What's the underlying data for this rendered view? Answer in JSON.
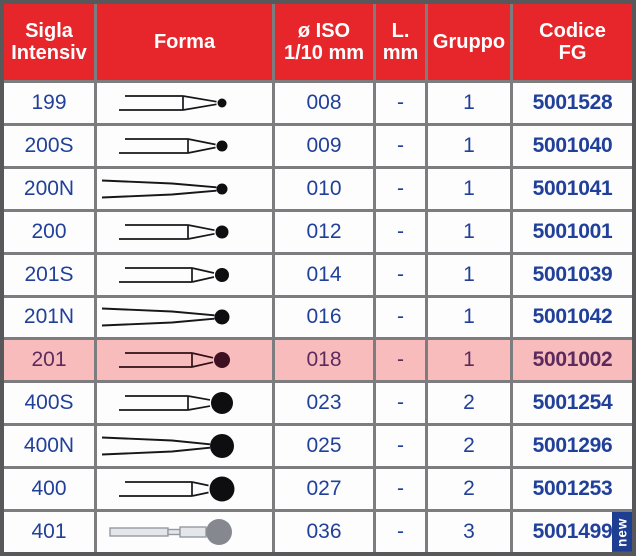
{
  "colors": {
    "header_bg": "#e7262b",
    "header_text": "#ffffff",
    "grid_line": "#7d7d7f",
    "outer_border": "#58585a",
    "text_blue": "#21409a",
    "row_bg": "#fdfdfd",
    "highlight_bg": "#f9bcbd",
    "highlight_text": "#5c2b5e",
    "badge_bg": "#1e3e92",
    "badge_text": "#ffffff",
    "shape_ink": "#17171a",
    "shape_ball": "#0e0e10",
    "highlight_shape_ink": "#2e1016",
    "highlight_shape_ball": "#3d1120",
    "gray_shape_fill": "#e4e6ea",
    "gray_shape_stroke": "#959aa2",
    "gray_shape_ball": "#85898f"
  },
  "table": {
    "columns": [
      {
        "id": "sigla",
        "lines": [
          "Sigla",
          "Intensiv"
        ]
      },
      {
        "id": "forma",
        "lines": [
          "Forma"
        ]
      },
      {
        "id": "iso",
        "lines": [
          "ø ISO",
          "1/10 mm"
        ]
      },
      {
        "id": "l",
        "lines": [
          "L.",
          "mm"
        ]
      },
      {
        "id": "gruppo",
        "lines": [
          "Gruppo"
        ]
      },
      {
        "id": "codice",
        "lines": [
          "Codice",
          "FG"
        ]
      }
    ],
    "rows": [
      {
        "sigla": "199",
        "iso": "008",
        "l": "-",
        "gruppo": "1",
        "codice": "5001528",
        "highlight": false,
        "shape": {
          "type": "cone",
          "v": 83,
          "r": 4.5
        }
      },
      {
        "sigla": "200S",
        "iso": "009",
        "l": "-",
        "gruppo": "1",
        "codice": "5001040",
        "highlight": false,
        "shape": {
          "type": "cone",
          "v": 88,
          "r": 5.5
        }
      },
      {
        "sigla": "200N",
        "iso": "010",
        "l": "-",
        "gruppo": "1",
        "codice": "5001041",
        "highlight": false,
        "shape": {
          "type": "taper",
          "r": 5.5
        }
      },
      {
        "sigla": "200",
        "iso": "012",
        "l": "-",
        "gruppo": "1",
        "codice": "5001001",
        "highlight": false,
        "shape": {
          "type": "cone",
          "v": 88,
          "r": 6.5
        }
      },
      {
        "sigla": "201S",
        "iso": "014",
        "l": "-",
        "gruppo": "1",
        "codice": "5001039",
        "highlight": false,
        "shape": {
          "type": "cone",
          "v": 92,
          "r": 7
        }
      },
      {
        "sigla": "201N",
        "iso": "016",
        "l": "-",
        "gruppo": "1",
        "codice": "5001042",
        "highlight": false,
        "shape": {
          "type": "taper",
          "r": 7.5
        }
      },
      {
        "sigla": "201",
        "iso": "018",
        "l": "-",
        "gruppo": "1",
        "codice": "5001002",
        "highlight": true,
        "shape": {
          "type": "cone",
          "v": 92,
          "r": 8
        }
      },
      {
        "sigla": "400S",
        "iso": "023",
        "l": "-",
        "gruppo": "2",
        "codice": "5001254",
        "highlight": false,
        "shape": {
          "type": "cone",
          "v": 88,
          "r": 11
        }
      },
      {
        "sigla": "400N",
        "iso": "025",
        "l": "-",
        "gruppo": "2",
        "codice": "5001296",
        "highlight": false,
        "shape": {
          "type": "taper",
          "r": 12
        }
      },
      {
        "sigla": "400",
        "iso": "027",
        "l": "-",
        "gruppo": "2",
        "codice": "5001253",
        "highlight": false,
        "shape": {
          "type": "cone",
          "v": 92,
          "r": 12.5
        }
      },
      {
        "sigla": "401",
        "iso": "036",
        "l": "-",
        "gruppo": "3",
        "codice": "5001499",
        "highlight": false,
        "badge": "new",
        "shape": {
          "type": "segmented",
          "r": 13
        }
      }
    ]
  }
}
